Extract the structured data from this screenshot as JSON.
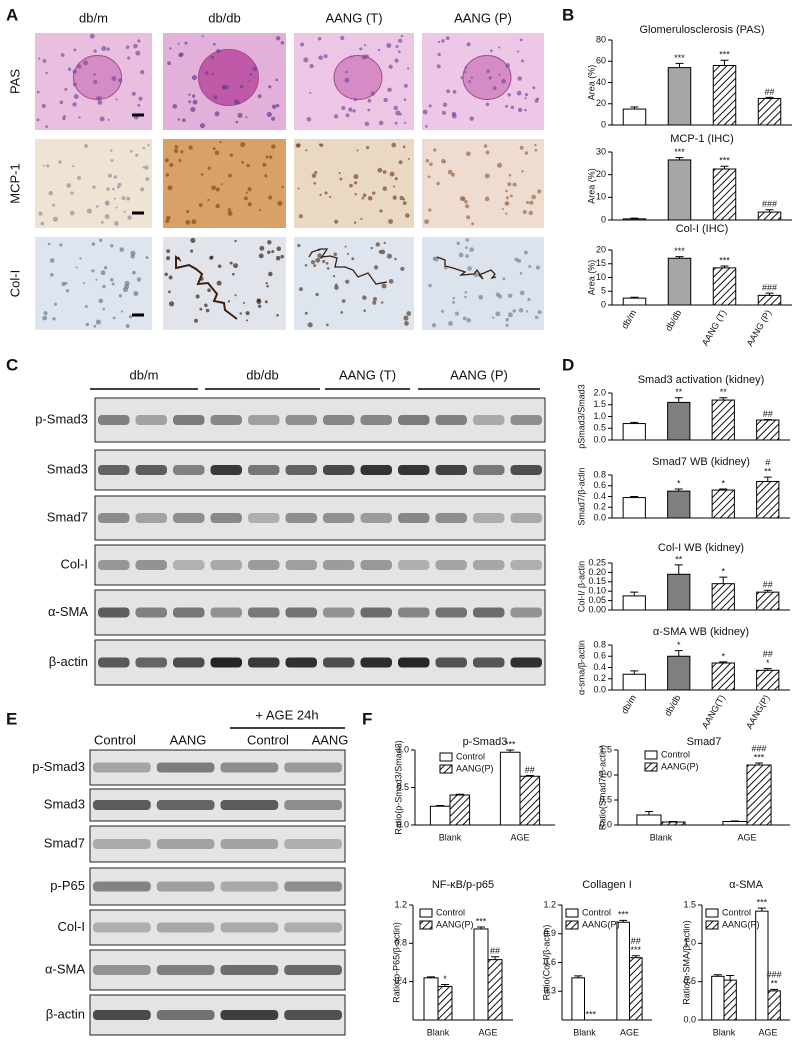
{
  "panel_labels": [
    "A",
    "B",
    "C",
    "D",
    "E",
    "F"
  ],
  "panel_a": {
    "columns": [
      "db/m",
      "db/db",
      "AANG (T)",
      "AANG (P)"
    ],
    "rows": [
      "PAS",
      "MCP-1",
      "Col-I"
    ]
  },
  "panel_c": {
    "groups": [
      "db/m",
      "db/db",
      "AANG (T)",
      "AANG (P)"
    ],
    "rows": [
      "p-Smad3",
      "Smad3",
      "Smad7",
      "Col-I",
      "α-SMA",
      "β-actin"
    ]
  },
  "panel_e": {
    "treatment": "+ AGE 24h",
    "columns": [
      "Control",
      "AANG",
      "Control",
      "AANG"
    ],
    "rows": [
      "p-Smad3",
      "Smad3",
      "Smad7",
      "p-P65",
      "Col-I",
      "α-SMA",
      "β-actin"
    ]
  },
  "chart_data": [
    {
      "type": "bar",
      "title": "Glomerulosclerosis (PAS)",
      "y_label": "Area (%)",
      "ylim": [
        0,
        80
      ],
      "yticks": [
        0,
        20,
        40,
        60,
        80
      ],
      "values": [
        15,
        54,
        56,
        25
      ],
      "errors": [
        2,
        4,
        5,
        1
      ],
      "annotations": [
        null,
        "***",
        "***",
        "##"
      ],
      "colors": [
        "#ffffff",
        "#a6a6a6",
        "hatch",
        "hatch"
      ]
    },
    {
      "type": "bar",
      "title": "MCP-1 (IHC)",
      "y_label": "Area (%)",
      "ylim": [
        0,
        30
      ],
      "yticks": [
        0,
        10,
        20,
        30
      ],
      "values": [
        0.5,
        26.5,
        22.5,
        3.5
      ],
      "errors": [
        0.3,
        1,
        1.2,
        1
      ],
      "annotations": [
        null,
        "***",
        "***",
        "###"
      ],
      "colors": [
        "#ffffff",
        "#a6a6a6",
        "hatch",
        "hatch"
      ]
    },
    {
      "type": "bar",
      "title": "Col-I (IHC)",
      "y_label": "Area (%)",
      "ylim": [
        0,
        20
      ],
      "yticks": [
        0,
        5,
        10,
        15,
        20
      ],
      "categories": [
        "db/m",
        "db/db",
        "AANG (T)",
        "AANG (P)"
      ],
      "values": [
        2.5,
        17,
        13.5,
        3.5
      ],
      "errors": [
        0.3,
        0.6,
        0.7,
        0.8
      ],
      "annotations": [
        null,
        "***",
        "***",
        "###"
      ],
      "colors": [
        "#ffffff",
        "#a6a6a6",
        "hatch",
        "hatch"
      ]
    },
    {
      "type": "bar",
      "title": "Smad3 activation (kidney)",
      "y_label": "pSmad3/Smad3",
      "ylim": [
        0,
        2
      ],
      "yticks": [
        {
          "value": 0,
          "label": "0.0"
        },
        0.5,
        {
          "value": 1,
          "label": "1.0"
        },
        1.5,
        {
          "value": 2,
          "label": "2.0"
        }
      ],
      "values": [
        0.7,
        1.6,
        1.7,
        0.85
      ],
      "errors": [
        0.05,
        0.2,
        0.1,
        0.02
      ],
      "annotations": [
        null,
        "**",
        "**",
        "##"
      ],
      "colors": [
        "#ffffff",
        "#7f7f7f",
        "hatch",
        "hatch"
      ]
    },
    {
      "type": "bar",
      "title": "Smad7 WB (kidney)",
      "y_label": "Smad7/β-actin",
      "ylim": [
        0,
        0.8
      ],
      "yticks": [
        {
          "value": 0,
          "label": "0.0"
        },
        0.2,
        0.4,
        0.6,
        0.8
      ],
      "values": [
        0.38,
        0.5,
        0.52,
        0.68
      ],
      "errors": [
        0.02,
        0.04,
        0.02,
        0.08
      ],
      "annotations": [
        null,
        "*",
        "*",
        "**"
      ],
      "annotations_top": [
        null,
        null,
        null,
        "#"
      ],
      "colors": [
        "#ffffff",
        "#7f7f7f",
        "hatch",
        "hatch"
      ]
    },
    {
      "type": "bar",
      "title": "Col-I WB (kidney)",
      "y_label": "Col-I/ β-actin",
      "ylim": [
        0,
        0.25
      ],
      "yticks": [
        {
          "value": 0,
          "label": "0.00"
        },
        0.05,
        {
          "value": 0.1,
          "label": "0.10"
        },
        0.15,
        {
          "value": 0.2,
          "label": "0.20"
        },
        0.25
      ],
      "values": [
        0.075,
        0.19,
        0.14,
        0.095
      ],
      "errors": [
        0.02,
        0.05,
        0.035,
        0.01
      ],
      "annotations": [
        null,
        "**",
        "*",
        "##"
      ],
      "colors": [
        "#ffffff",
        "#7f7f7f",
        "hatch",
        "hatch"
      ]
    },
    {
      "type": "bar",
      "title": "α-SMA WB (kidney)",
      "y_label": "α-sma/β-actin",
      "ylim": [
        0,
        0.8
      ],
      "yticks": [
        {
          "value": 0,
          "label": "0.0"
        },
        0.2,
        0.4,
        0.6,
        0.8
      ],
      "categories": [
        "db/m",
        "db/db",
        "AANG(T)",
        "AANG(P)"
      ],
      "values": [
        0.28,
        0.6,
        0.48,
        0.35
      ],
      "errors": [
        0.06,
        0.1,
        0.02,
        0.03
      ],
      "annotations": [
        null,
        "*",
        "*",
        "*"
      ],
      "annotations_top": [
        null,
        null,
        null,
        "##"
      ],
      "colors": [
        "#ffffff",
        "#7f7f7f",
        "hatch",
        "hatch"
      ]
    },
    {
      "type": "bar",
      "title": "p-Smad3",
      "y_label": "Ratio(p-Smad3/Smad3)",
      "ylim": [
        0,
        1
      ],
      "yticks": [
        {
          "value": 0,
          "label": "0.0"
        },
        0.5,
        {
          "value": 1,
          "label": "1.0"
        }
      ],
      "categories": [
        "Blank",
        "AGE"
      ],
      "series": [
        {
          "name": "Control",
          "color": "#ffffff",
          "values": [
            0.25,
            0.97
          ],
          "errors": [
            0.01,
            0.03
          ],
          "annotations": [
            null,
            "***"
          ]
        },
        {
          "name": "AANG(P)",
          "color": "hatch",
          "values": [
            0.4,
            0.65
          ],
          "errors": [
            0.01,
            0.01
          ],
          "annotations": [
            null,
            "##"
          ]
        }
      ]
    },
    {
      "type": "bar",
      "title": "Smad7",
      "y_label": "Ratio(Smad7/β-actin)",
      "ylim": [
        0,
        1.5
      ],
      "yticks": [
        {
          "value": 0,
          "label": "0.0"
        },
        0.5,
        {
          "value": 1,
          "label": "1.0"
        },
        1.5
      ],
      "categories": [
        "Blank",
        "AGE"
      ],
      "series": [
        {
          "name": "Control",
          "color": "#ffffff",
          "values": [
            0.2,
            0.07
          ],
          "errors": [
            0.07,
            0.01
          ]
        },
        {
          "name": "AANG(P)",
          "color": "hatch",
          "values": [
            0.06,
            1.2
          ],
          "errors": [
            0.01,
            0.04
          ],
          "annotations": [
            null,
            "***"
          ],
          "annotations_top": [
            null,
            "###"
          ]
        }
      ]
    },
    {
      "type": "bar",
      "title": "NF-κB/p-p65",
      "y_label": "Ratio(p-P65/β-actin)",
      "ylim": [
        0,
        1.2
      ],
      "yticks": [
        0.4,
        0.8,
        1.2
      ],
      "categories": [
        "Blank",
        "AGE"
      ],
      "series": [
        {
          "name": "Control",
          "color": "#ffffff",
          "values": [
            0.44,
            0.95
          ],
          "errors": [
            0.01,
            0.02
          ],
          "annotations": [
            null,
            "***"
          ]
        },
        {
          "name": "AANG(P)",
          "color": "hatch",
          "values": [
            0.35,
            0.63
          ],
          "errors": [
            0.02,
            0.03
          ],
          "annotations": [
            "*",
            "##"
          ]
        }
      ]
    },
    {
      "type": "bar",
      "title": "Collagen I",
      "y_label": "Ratio(Col-I/β-actin)",
      "ylim": [
        0,
        1.2
      ],
      "yticks": [
        0.3,
        0.6,
        0.9,
        1.2
      ],
      "categories": [
        "Blank",
        "AGE"
      ],
      "series": [
        {
          "name": "Control",
          "color": "#ffffff",
          "values": [
            0.44,
            1.02
          ],
          "errors": [
            0.02,
            0.02
          ],
          "annotations": [
            null,
            "***"
          ]
        },
        {
          "name": "AANG(P)",
          "color": "hatch",
          "values": [
            0,
            0.65
          ],
          "errors": [
            0,
            0.02
          ],
          "annotations": [
            "***",
            "***"
          ],
          "annotations_top": [
            null,
            "##"
          ]
        }
      ]
    },
    {
      "type": "bar",
      "title": "α-SMA",
      "y_label": "Ratio(α-SMA/β-actin)",
      "ylim": [
        0,
        1.5
      ],
      "yticks": [
        {
          "value": 0,
          "label": "0.0"
        },
        0.5,
        {
          "value": 1,
          "label": "1.0"
        },
        1.5
      ],
      "categories": [
        "Blank",
        "AGE"
      ],
      "series": [
        {
          "name": "Control",
          "color": "#ffffff",
          "values": [
            0.57,
            1.42
          ],
          "errors": [
            0.02,
            0.04
          ],
          "annotations": [
            null,
            "***"
          ]
        },
        {
          "name": "AANG(P)",
          "color": "hatch",
          "values": [
            0.52,
            0.38
          ],
          "errors": [
            0.06,
            0.02
          ],
          "annotations": [
            null,
            "**"
          ],
          "annotations_top": [
            null,
            "###"
          ]
        }
      ]
    }
  ]
}
